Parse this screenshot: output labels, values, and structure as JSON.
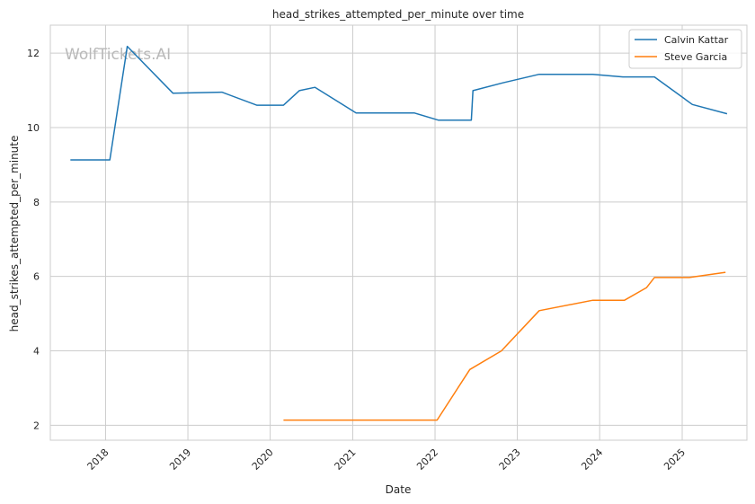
{
  "chart_data": {
    "type": "line",
    "title": "head_strikes_attempted_per_minute over time",
    "xlabel": "Date",
    "ylabel": "head_strikes_attempted_per_minute",
    "watermark": "WolfTickets.AI",
    "x_ticks": [
      "2018",
      "2019",
      "2020",
      "2021",
      "2022",
      "2023",
      "2024",
      "2025"
    ],
    "y_ticks": [
      2,
      4,
      6,
      8,
      10,
      12
    ],
    "xlim": [
      "2017-05-01",
      "2025-10-15"
    ],
    "ylim": [
      1.6,
      12.75
    ],
    "grid": true,
    "legend_position": "top-right",
    "series": [
      {
        "name": "Calvin Kattar",
        "color": "#1f77b4",
        "points": [
          [
            "2017-07-29",
            9.13
          ],
          [
            "2018-01-20",
            9.13
          ],
          [
            "2018-04-07",
            12.18
          ],
          [
            "2018-10-27",
            10.92
          ],
          [
            "2019-06-01",
            10.95
          ],
          [
            "2019-11-02",
            10.6
          ],
          [
            "2020-02-29",
            10.6
          ],
          [
            "2020-05-09",
            10.99
          ],
          [
            "2020-07-18",
            11.08
          ],
          [
            "2021-01-16",
            10.39
          ],
          [
            "2021-10-02",
            10.39
          ],
          [
            "2022-01-15",
            10.2
          ],
          [
            "2022-06-11",
            10.2
          ],
          [
            "2022-06-18",
            10.99
          ],
          [
            "2022-10-29",
            11.2
          ],
          [
            "2023-04-08",
            11.43
          ],
          [
            "2023-12-01",
            11.43
          ],
          [
            "2024-04-13",
            11.36
          ],
          [
            "2024-08-31",
            11.36
          ],
          [
            "2025-02-15",
            10.62
          ],
          [
            "2025-07-19",
            10.37
          ]
        ]
      },
      {
        "name": "Steve Garcia",
        "color": "#ff7f0e",
        "points": [
          [
            "2020-02-29",
            2.14
          ],
          [
            "2021-02-06",
            2.14
          ],
          [
            "2022-01-10",
            2.14
          ],
          [
            "2022-06-04",
            3.5
          ],
          [
            "2022-10-22",
            4.0
          ],
          [
            "2023-04-08",
            5.08
          ],
          [
            "2023-12-02",
            5.36
          ],
          [
            "2024-04-20",
            5.36
          ],
          [
            "2024-07-27",
            5.7
          ],
          [
            "2024-08-31",
            5.97
          ],
          [
            "2025-02-01",
            5.97
          ],
          [
            "2025-07-12",
            6.11
          ]
        ]
      }
    ]
  }
}
